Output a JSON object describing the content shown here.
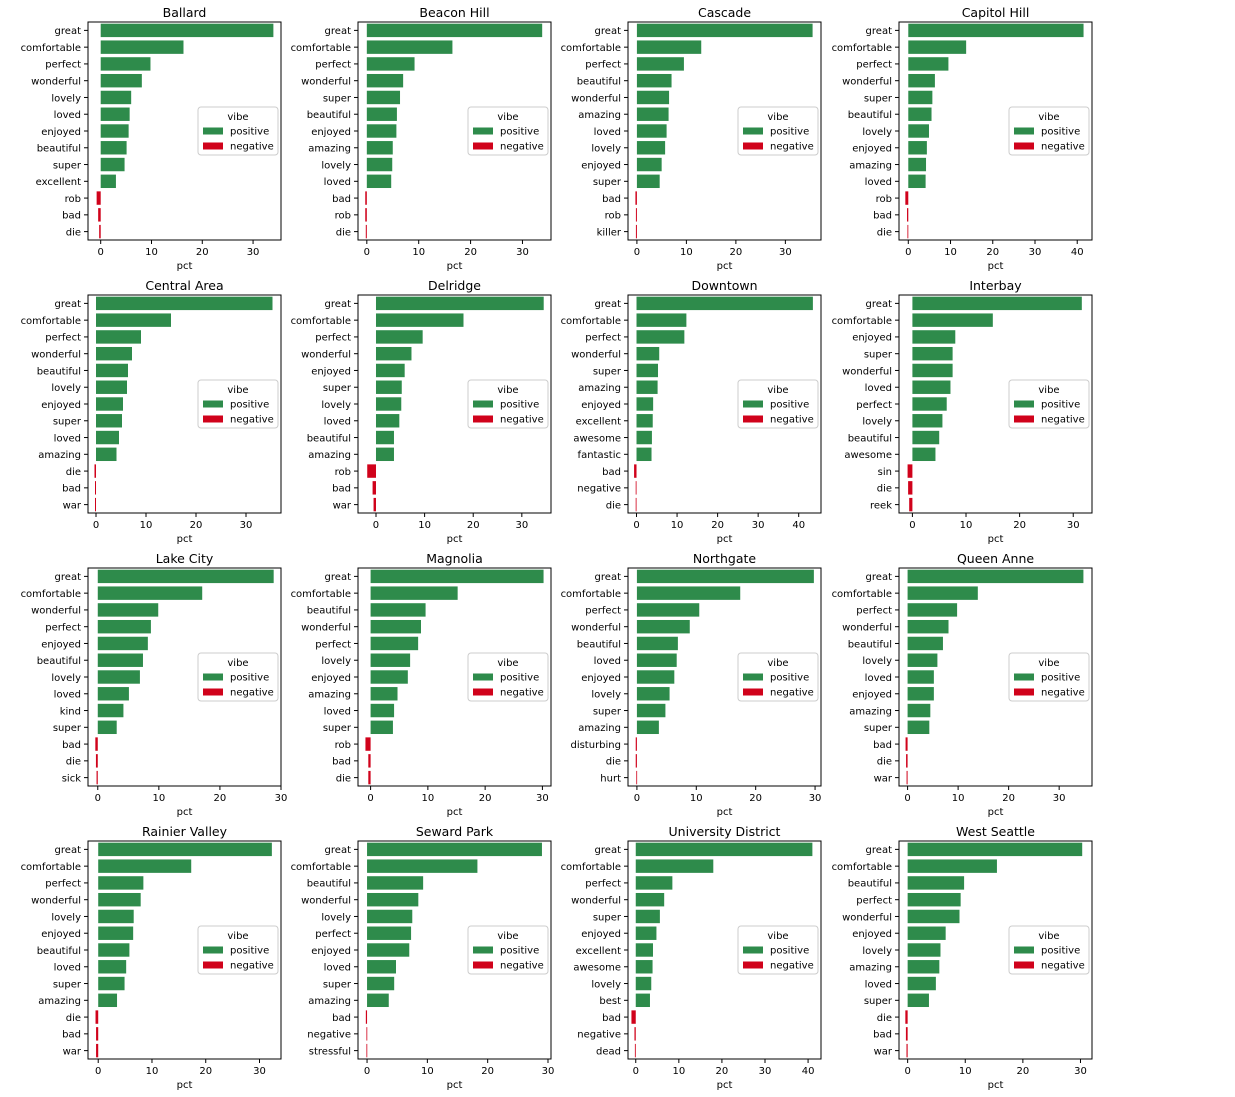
{
  "figure": {
    "legend_title": "vibe",
    "legend_labels": [
      "positive",
      "negative"
    ],
    "xlabel": "pct",
    "colors": {
      "positive": "#2e8b4b",
      "negative": "#d0021b"
    }
  },
  "chart_data": [
    {
      "type": "bar",
      "orientation": "horizontal",
      "title": "Ballard",
      "xlabel": "pct",
      "xlim": [
        -2.5,
        35.5
      ],
      "xticks": [
        0,
        10,
        20,
        30
      ],
      "legend_placement": "center-right",
      "categories": [
        "great",
        "comfortable",
        "perfect",
        "wonderful",
        "lovely",
        "loved",
        "enjoyed",
        "beautiful",
        "super",
        "excellent",
        "rob",
        "bad",
        "die"
      ],
      "values": [
        34,
        16.3,
        9.8,
        8.1,
        6,
        5.7,
        5.5,
        5.1,
        4.7,
        3,
        -0.8,
        -0.5,
        -0.3
      ],
      "vibe": [
        "positive",
        "positive",
        "positive",
        "positive",
        "positive",
        "positive",
        "positive",
        "positive",
        "positive",
        "positive",
        "negative",
        "negative",
        "negative"
      ]
    },
    {
      "type": "bar",
      "orientation": "horizontal",
      "title": "Beacon Hill",
      "xlabel": "pct",
      "xlim": [
        -1.7,
        35.5
      ],
      "xticks": [
        0,
        10,
        20,
        30
      ],
      "legend_placement": "center-right",
      "categories": [
        "great",
        "comfortable",
        "perfect",
        "wonderful",
        "super",
        "beautiful",
        "enjoyed",
        "amazing",
        "lovely",
        "loved",
        "bad",
        "rob",
        "die"
      ],
      "values": [
        33.8,
        16.5,
        9.2,
        7,
        6.4,
        5.8,
        5.7,
        5,
        4.9,
        4.7,
        -0.3,
        -0.3,
        -0.2
      ],
      "vibe": [
        "positive",
        "positive",
        "positive",
        "positive",
        "positive",
        "positive",
        "positive",
        "positive",
        "positive",
        "positive",
        "negative",
        "negative",
        "negative"
      ]
    },
    {
      "type": "bar",
      "orientation": "horizontal",
      "title": "Cascade",
      "xlabel": "pct",
      "xlim": [
        -1.8,
        37.2
      ],
      "xticks": [
        0,
        10,
        20,
        30
      ],
      "legend_placement": "center-right",
      "categories": [
        "great",
        "comfortable",
        "perfect",
        "beautiful",
        "wonderful",
        "amazing",
        "loved",
        "lovely",
        "enjoyed",
        "super",
        "bad",
        "rob",
        "killer"
      ],
      "values": [
        35.5,
        13,
        9.5,
        7,
        6.5,
        6.4,
        6,
        5.7,
        5,
        4.6,
        -0.3,
        -0.2,
        -0.2
      ],
      "vibe": [
        "positive",
        "positive",
        "positive",
        "positive",
        "positive",
        "positive",
        "positive",
        "positive",
        "positive",
        "positive",
        "negative",
        "negative",
        "negative"
      ]
    },
    {
      "type": "bar",
      "orientation": "horizontal",
      "title": "Capitol Hill",
      "xlabel": "pct",
      "xlim": [
        -2.2,
        43.5
      ],
      "xticks": [
        0,
        10,
        20,
        30,
        40
      ],
      "legend_placement": "center-right",
      "categories": [
        "great",
        "comfortable",
        "perfect",
        "wonderful",
        "super",
        "beautiful",
        "lovely",
        "enjoyed",
        "amazing",
        "loved",
        "rob",
        "bad",
        "die"
      ],
      "values": [
        41.5,
        13.7,
        9.5,
        6.3,
        5.7,
        5.5,
        4.9,
        4.4,
        4.2,
        4.1,
        -0.7,
        -0.3,
        -0.2
      ],
      "vibe": [
        "positive",
        "positive",
        "positive",
        "positive",
        "positive",
        "positive",
        "positive",
        "positive",
        "positive",
        "positive",
        "negative",
        "negative",
        "negative"
      ]
    },
    {
      "type": "bar",
      "orientation": "horizontal",
      "title": "Central Area",
      "xlabel": "pct",
      "xlim": [
        -1.6,
        37
      ],
      "xticks": [
        0,
        10,
        20,
        30
      ],
      "legend_placement": "center-right",
      "categories": [
        "great",
        "comfortable",
        "perfect",
        "wonderful",
        "beautiful",
        "lovely",
        "enjoyed",
        "super",
        "loved",
        "amazing",
        "die",
        "bad",
        "war"
      ],
      "values": [
        35.3,
        15,
        9,
        7.2,
        6.4,
        6.2,
        5.4,
        5.2,
        4.6,
        4.1,
        -0.3,
        -0.2,
        -0.2
      ],
      "vibe": [
        "positive",
        "positive",
        "positive",
        "positive",
        "positive",
        "positive",
        "positive",
        "positive",
        "positive",
        "positive",
        "negative",
        "negative",
        "negative"
      ]
    },
    {
      "type": "bar",
      "orientation": "horizontal",
      "title": "Delridge",
      "xlabel": "pct",
      "xlim": [
        -3.7,
        36
      ],
      "xticks": [
        0,
        10,
        20,
        30
      ],
      "legend_placement": "center-right",
      "categories": [
        "great",
        "comfortable",
        "perfect",
        "wonderful",
        "enjoyed",
        "super",
        "lovely",
        "loved",
        "beautiful",
        "amazing",
        "rob",
        "bad",
        "war"
      ],
      "values": [
        34.5,
        18,
        9.6,
        7.3,
        5.9,
        5.3,
        5.2,
        4.8,
        3.7,
        3.7,
        -1.8,
        -0.7,
        -0.5
      ],
      "vibe": [
        "positive",
        "positive",
        "positive",
        "positive",
        "positive",
        "positive",
        "positive",
        "positive",
        "positive",
        "positive",
        "negative",
        "negative",
        "negative"
      ]
    },
    {
      "type": "bar",
      "orientation": "horizontal",
      "title": "Downtown",
      "xlabel": "pct",
      "xlim": [
        -2.1,
        45.5
      ],
      "xticks": [
        0,
        10,
        20,
        30,
        40
      ],
      "legend_placement": "center-right",
      "categories": [
        "great",
        "comfortable",
        "perfect",
        "wonderful",
        "super",
        "amazing",
        "enjoyed",
        "excellent",
        "awesome",
        "fantastic",
        "bad",
        "negative",
        "die"
      ],
      "values": [
        43.5,
        12.3,
        11.8,
        5.6,
        5.3,
        5.2,
        4.1,
        4,
        3.8,
        3.7,
        -0.6,
        -0.2,
        -0.2
      ],
      "vibe": [
        "positive",
        "positive",
        "positive",
        "positive",
        "positive",
        "positive",
        "positive",
        "positive",
        "positive",
        "positive",
        "negative",
        "negative",
        "negative"
      ]
    },
    {
      "type": "bar",
      "orientation": "horizontal",
      "title": "Interbay",
      "xlabel": "pct",
      "xlim": [
        -2.5,
        33.5
      ],
      "xticks": [
        0,
        10,
        20,
        30
      ],
      "legend_placement": "center-right",
      "categories": [
        "great",
        "comfortable",
        "enjoyed",
        "super",
        "wonderful",
        "loved",
        "perfect",
        "lovely",
        "beautiful",
        "awesome",
        "sin",
        "die",
        "reek"
      ],
      "values": [
        31.6,
        15,
        8,
        7.5,
        7.5,
        7.1,
        6.4,
        5.6,
        5,
        4.3,
        -0.9,
        -0.8,
        -0.6
      ],
      "vibe": [
        "positive",
        "positive",
        "positive",
        "positive",
        "positive",
        "positive",
        "positive",
        "positive",
        "positive",
        "positive",
        "negative",
        "negative",
        "negative"
      ]
    },
    {
      "type": "bar",
      "orientation": "horizontal",
      "title": "Lake City",
      "xlabel": "pct",
      "xlim": [
        -1.6,
        30
      ],
      "xticks": [
        0,
        10,
        20,
        30
      ],
      "legend_placement": "center-right",
      "categories": [
        "great",
        "comfortable",
        "wonderful",
        "perfect",
        "enjoyed",
        "beautiful",
        "lovely",
        "loved",
        "kind",
        "super",
        "bad",
        "die",
        "sick"
      ],
      "values": [
        28.8,
        17.1,
        9.9,
        8.7,
        8.2,
        7.4,
        6.9,
        5.1,
        4.2,
        3.1,
        -0.4,
        -0.3,
        -0.2
      ],
      "vibe": [
        "positive",
        "positive",
        "positive",
        "positive",
        "positive",
        "positive",
        "positive",
        "positive",
        "positive",
        "positive",
        "negative",
        "negative",
        "negative"
      ]
    },
    {
      "type": "bar",
      "orientation": "horizontal",
      "title": "Magnolia",
      "xlabel": "pct",
      "xlim": [
        -2.2,
        31.5
      ],
      "xticks": [
        0,
        10,
        20,
        30
      ],
      "legend_placement": "center-right",
      "categories": [
        "great",
        "comfortable",
        "beautiful",
        "wonderful",
        "perfect",
        "lovely",
        "enjoyed",
        "amazing",
        "loved",
        "super",
        "rob",
        "bad",
        "die"
      ],
      "values": [
        30.2,
        15.2,
        9.6,
        8.8,
        8.3,
        6.9,
        6.5,
        4.7,
        4.1,
        3.9,
        -0.9,
        -0.4,
        -0.4
      ],
      "vibe": [
        "positive",
        "positive",
        "positive",
        "positive",
        "positive",
        "positive",
        "positive",
        "positive",
        "positive",
        "positive",
        "negative",
        "negative",
        "negative"
      ]
    },
    {
      "type": "bar",
      "orientation": "horizontal",
      "title": "Northgate",
      "xlabel": "pct",
      "xlim": [
        -1.5,
        31
      ],
      "xticks": [
        0,
        10,
        20,
        30
      ],
      "legend_placement": "center-right",
      "categories": [
        "great",
        "comfortable",
        "perfect",
        "wonderful",
        "beautiful",
        "loved",
        "enjoyed",
        "lovely",
        "super",
        "amazing",
        "disturbing",
        "die",
        "hurt"
      ],
      "values": [
        29.8,
        17.4,
        10.5,
        8.9,
        6.9,
        6.7,
        6.3,
        5.5,
        4.8,
        3.7,
        -0.2,
        -0.2,
        -0.1
      ],
      "vibe": [
        "positive",
        "positive",
        "positive",
        "positive",
        "positive",
        "positive",
        "positive",
        "positive",
        "positive",
        "positive",
        "negative",
        "negative",
        "negative"
      ]
    },
    {
      "type": "bar",
      "orientation": "horizontal",
      "title": "Queen Anne",
      "xlabel": "pct",
      "xlim": [
        -1.7,
        36.5
      ],
      "xticks": [
        0,
        10,
        20,
        30
      ],
      "legend_placement": "center-right",
      "categories": [
        "great",
        "comfortable",
        "perfect",
        "wonderful",
        "beautiful",
        "lovely",
        "loved",
        "enjoyed",
        "amazing",
        "super",
        "bad",
        "die",
        "war"
      ],
      "values": [
        34.8,
        13.9,
        9.8,
        8.1,
        7,
        5.9,
        5.2,
        5.2,
        4.5,
        4.3,
        -0.4,
        -0.3,
        -0.2
      ],
      "vibe": [
        "positive",
        "positive",
        "positive",
        "positive",
        "positive",
        "positive",
        "positive",
        "positive",
        "positive",
        "positive",
        "negative",
        "negative",
        "negative"
      ]
    },
    {
      "type": "bar",
      "orientation": "horizontal",
      "title": "Rainier Valley",
      "xlabel": "pct",
      "xlim": [
        -1.9,
        34
      ],
      "xticks": [
        0,
        10,
        20,
        30
      ],
      "legend_placement": "center-right",
      "categories": [
        "great",
        "comfortable",
        "perfect",
        "wonderful",
        "lovely",
        "enjoyed",
        "beautiful",
        "loved",
        "super",
        "amazing",
        "die",
        "bad",
        "war"
      ],
      "values": [
        32.3,
        17.3,
        8.4,
        7.9,
        6.6,
        6.5,
        5.8,
        5.2,
        4.9,
        3.5,
        -0.5,
        -0.4,
        -0.4
      ],
      "vibe": [
        "positive",
        "positive",
        "positive",
        "positive",
        "positive",
        "positive",
        "positive",
        "positive",
        "positive",
        "positive",
        "negative",
        "negative",
        "negative"
      ]
    },
    {
      "type": "bar",
      "orientation": "horizontal",
      "title": "Seward Park",
      "xlabel": "pct",
      "xlim": [
        -1.5,
        30.5
      ],
      "xticks": [
        0,
        10,
        20,
        30
      ],
      "legend_placement": "center-right",
      "categories": [
        "great",
        "comfortable",
        "beautiful",
        "wonderful",
        "lovely",
        "perfect",
        "enjoyed",
        "loved",
        "super",
        "amazing",
        "bad",
        "negative",
        "stressful"
      ],
      "values": [
        29,
        18.3,
        9.3,
        8.5,
        7.5,
        7.3,
        7,
        4.8,
        4.5,
        3.6,
        -0.2,
        -0.1,
        -0.1
      ],
      "vibe": [
        "positive",
        "positive",
        "positive",
        "positive",
        "positive",
        "positive",
        "positive",
        "positive",
        "positive",
        "positive",
        "negative",
        "negative",
        "negative"
      ]
    },
    {
      "type": "bar",
      "orientation": "horizontal",
      "title": "University District",
      "xlabel": "pct",
      "xlim": [
        -1.8,
        43
      ],
      "xticks": [
        0,
        10,
        20,
        30,
        40
      ],
      "legend_placement": "center-right",
      "categories": [
        "great",
        "comfortable",
        "perfect",
        "wonderful",
        "super",
        "enjoyed",
        "excellent",
        "awesome",
        "lovely",
        "best",
        "bad",
        "negative",
        "dead"
      ],
      "values": [
        41,
        18,
        8.5,
        6.6,
        5.6,
        4.8,
        4,
        3.9,
        3.6,
        3.3,
        -1,
        -0.3,
        -0.2
      ],
      "vibe": [
        "positive",
        "positive",
        "positive",
        "positive",
        "positive",
        "positive",
        "positive",
        "positive",
        "positive",
        "positive",
        "negative",
        "negative",
        "negative"
      ]
    },
    {
      "type": "bar",
      "orientation": "horizontal",
      "title": "West Seattle",
      "xlabel": "pct",
      "xlim": [
        -1.5,
        32
      ],
      "xticks": [
        0,
        10,
        20,
        30
      ],
      "legend_placement": "center-right",
      "categories": [
        "great",
        "comfortable",
        "beautiful",
        "perfect",
        "wonderful",
        "enjoyed",
        "lovely",
        "amazing",
        "loved",
        "super",
        "die",
        "bad",
        "war"
      ],
      "values": [
        30.3,
        15.5,
        9.8,
        9.2,
        9,
        6.6,
        5.7,
        5.5,
        4.9,
        3.7,
        -0.4,
        -0.3,
        -0.2
      ],
      "vibe": [
        "positive",
        "positive",
        "positive",
        "positive",
        "positive",
        "positive",
        "positive",
        "positive",
        "positive",
        "positive",
        "negative",
        "negative",
        "negative"
      ]
    }
  ]
}
